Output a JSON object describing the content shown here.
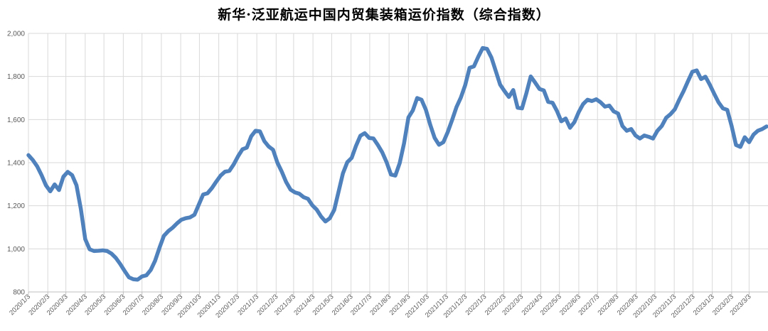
{
  "title": "新华·泛亚航运中国内贸集装箱运价指数（综合指数）",
  "chart_data": {
    "type": "line",
    "title": "新华·泛亚航运中国内贸集装箱运价指数（综合指数）",
    "series": [
      {
        "name": "综合指数",
        "color": "#4f81bd",
        "stroke_width": 5.5,
        "start_date": "2020/1/3",
        "interval": "weekly",
        "values": [
          1435,
          1412,
          1383,
          1342,
          1295,
          1267,
          1299,
          1273,
          1335,
          1357,
          1342,
          1295,
          1185,
          1045,
          998,
          990,
          991,
          993,
          990,
          978,
          958,
          930,
          898,
          868,
          859,
          857,
          872,
          877,
          902,
          945,
          1005,
          1060,
          1082,
          1098,
          1118,
          1135,
          1142,
          1146,
          1158,
          1205,
          1252,
          1258,
          1282,
          1312,
          1340,
          1358,
          1362,
          1392,
          1430,
          1462,
          1470,
          1522,
          1548,
          1545,
          1500,
          1475,
          1460,
          1400,
          1358,
          1310,
          1275,
          1262,
          1256,
          1240,
          1232,
          1202,
          1182,
          1150,
          1127,
          1142,
          1180,
          1265,
          1350,
          1402,
          1422,
          1478,
          1525,
          1537,
          1515,
          1512,
          1482,
          1448,
          1402,
          1345,
          1340,
          1398,
          1490,
          1610,
          1642,
          1700,
          1692,
          1645,
          1575,
          1515,
          1483,
          1495,
          1542,
          1598,
          1658,
          1702,
          1760,
          1840,
          1847,
          1892,
          1932,
          1928,
          1888,
          1825,
          1762,
          1732,
          1705,
          1737,
          1655,
          1652,
          1722,
          1800,
          1772,
          1742,
          1735,
          1682,
          1678,
          1640,
          1592,
          1605,
          1562,
          1588,
          1635,
          1672,
          1692,
          1686,
          1694,
          1680,
          1660,
          1665,
          1638,
          1628,
          1570,
          1548,
          1556,
          1526,
          1512,
          1526,
          1520,
          1512,
          1548,
          1570,
          1608,
          1625,
          1648,
          1692,
          1732,
          1778,
          1822,
          1828,
          1788,
          1799,
          1762,
          1720,
          1680,
          1652,
          1645,
          1570,
          1482,
          1473,
          1518,
          1495,
          1530,
          1548,
          1556,
          1568
        ]
      }
    ],
    "x_tick_labels": [
      "2020/1/3",
      "2020/2/3",
      "2020/3/3",
      "2020/4/3",
      "2020/5/3",
      "2020/6/3",
      "2020/7/3",
      "2020/8/3",
      "2020/9/3",
      "2020/10/3",
      "2020/11/3",
      "2020/12/3",
      "2021/1/3",
      "2021/2/3",
      "2021/3/3",
      "2021/4/3",
      "2021/5/3",
      "2021/6/3",
      "2021/7/3",
      "2021/8/3",
      "2021/9/3",
      "2021/10/3",
      "2021/11/3",
      "2021/12/3",
      "2022/1/3",
      "2022/2/3",
      "2022/3/3",
      "2022/4/3",
      "2022/5/3",
      "2022/6/3",
      "2022/7/3",
      "2022/8/3",
      "2022/9/3",
      "2022/10/3",
      "2022/11/3",
      "2022/12/3",
      "2023/1/3",
      "2023/2/3",
      "2023/3/3"
    ],
    "y_tick_labels": [
      "800",
      "1,000",
      "1,200",
      "1,400",
      "1,600",
      "1,800",
      "2,000"
    ],
    "y_ticks": [
      800,
      1000,
      1200,
      1400,
      1600,
      1800,
      2000
    ],
    "ylim": [
      800,
      2000
    ],
    "xlabel": "",
    "ylabel": "",
    "grid": true,
    "legend_position": "none",
    "colors": {
      "line": "#4f81bd",
      "gridline": "#d9d9d9",
      "axis_line": "#bfbfbf",
      "tick_text": "#595959",
      "title_text": "#000000",
      "background": "#ffffff"
    }
  }
}
